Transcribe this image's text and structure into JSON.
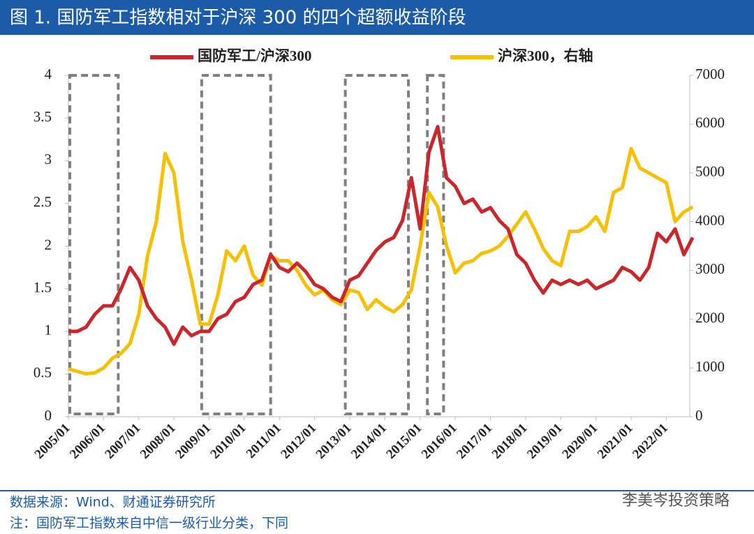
{
  "header": {
    "title": "图 1. 国防军工指数相对于沪深 300 的四个超额收益阶段"
  },
  "chart_data": {
    "type": "line",
    "x": [
      "2005/01",
      "2005/04",
      "2005/07",
      "2005/10",
      "2006/01",
      "2006/04",
      "2006/07",
      "2006/10",
      "2007/01",
      "2007/04",
      "2007/07",
      "2007/10",
      "2008/01",
      "2008/04",
      "2008/07",
      "2008/10",
      "2009/01",
      "2009/04",
      "2009/07",
      "2009/10",
      "2010/01",
      "2010/04",
      "2010/07",
      "2010/10",
      "2011/01",
      "2011/04",
      "2011/07",
      "2011/10",
      "2012/01",
      "2012/04",
      "2012/07",
      "2012/10",
      "2013/01",
      "2013/04",
      "2013/07",
      "2013/10",
      "2014/01",
      "2014/04",
      "2014/07",
      "2014/10",
      "2015/01",
      "2015/04",
      "2015/07",
      "2015/10",
      "2016/01",
      "2016/04",
      "2016/07",
      "2016/10",
      "2017/01",
      "2017/04",
      "2017/07",
      "2017/10",
      "2018/01",
      "2018/04",
      "2018/07",
      "2018/10",
      "2019/01",
      "2019/04",
      "2019/07",
      "2019/10",
      "2020/01",
      "2020/04",
      "2020/07",
      "2020/10",
      "2021/01",
      "2021/04",
      "2021/07",
      "2021/10",
      "2022/01",
      "2022/04",
      "2022/07",
      "2022/10"
    ],
    "series": [
      {
        "name": "国防军工/沪深300",
        "color": "#c8282d",
        "axis": "y",
        "values": [
          1.0,
          1.0,
          1.05,
          1.2,
          1.3,
          1.3,
          1.5,
          1.75,
          1.6,
          1.3,
          1.15,
          1.05,
          0.85,
          1.05,
          0.95,
          1.0,
          1.0,
          1.15,
          1.2,
          1.35,
          1.4,
          1.55,
          1.6,
          1.9,
          1.75,
          1.7,
          1.8,
          1.7,
          1.55,
          1.5,
          1.4,
          1.35,
          1.6,
          1.65,
          1.8,
          1.95,
          2.05,
          2.1,
          2.3,
          2.8,
          2.2,
          3.1,
          3.4,
          2.8,
          2.7,
          2.5,
          2.55,
          2.4,
          2.45,
          2.3,
          2.2,
          1.9,
          1.8,
          1.6,
          1.45,
          1.6,
          1.55,
          1.6,
          1.55,
          1.6,
          1.5,
          1.55,
          1.6,
          1.75,
          1.7,
          1.6,
          1.75,
          2.15,
          2.05,
          2.2,
          1.9,
          2.1
        ]
      },
      {
        "name": "沪深300，右轴",
        "color": "#f5c000",
        "axis": "y2",
        "values": [
          980,
          930,
          880,
          900,
          1000,
          1200,
          1300,
          1500,
          2100,
          3300,
          4000,
          5400,
          5000,
          3600,
          2800,
          1900,
          1900,
          2500,
          3400,
          3200,
          3500,
          2900,
          2700,
          3300,
          3200,
          3200,
          3000,
          2700,
          2500,
          2600,
          2400,
          2300,
          2600,
          2550,
          2200,
          2400,
          2250,
          2150,
          2300,
          2600,
          3500,
          4600,
          4300,
          3500,
          2950,
          3150,
          3200,
          3350,
          3400,
          3500,
          3700,
          3950,
          4200,
          3850,
          3450,
          3200,
          3100,
          3800,
          3800,
          3900,
          4100,
          3800,
          4600,
          4700,
          5500,
          5100,
          5000,
          4900,
          4800,
          4000,
          4200,
          4300
        ]
      }
    ],
    "xlim": [
      "2005/01",
      "2022/09"
    ],
    "xticks": [
      "2005/01",
      "2006/01",
      "2007/01",
      "2008/01",
      "2009/01",
      "2010/01",
      "2011/01",
      "2012/01",
      "2013/01",
      "2014/01",
      "2015/01",
      "2016/01",
      "2017/01",
      "2018/01",
      "2019/01",
      "2020/01",
      "2021/01",
      "2022/01"
    ],
    "ylim": [
      0,
      4
    ],
    "yticks": [
      0,
      0.5,
      1,
      1.5,
      2,
      2.5,
      3,
      3.5,
      4
    ],
    "y2lim": [
      0,
      7000
    ],
    "y2ticks": [
      0,
      1000,
      2000,
      3000,
      4000,
      5000,
      6000,
      7000
    ],
    "highlight_periods": [
      {
        "start": "2005/01",
        "end": "2006/06"
      },
      {
        "start": "2008/10",
        "end": "2010/10"
      },
      {
        "start": "2012/11",
        "end": "2014/09"
      },
      {
        "start": "2015/03",
        "end": "2015/09"
      }
    ]
  },
  "footer": {
    "source": "数据来源：Wind、财通证券研究所",
    "note": "注：国防军工指数来自中信一级行业分类，下同",
    "watermark": "李美岑投资策略"
  }
}
